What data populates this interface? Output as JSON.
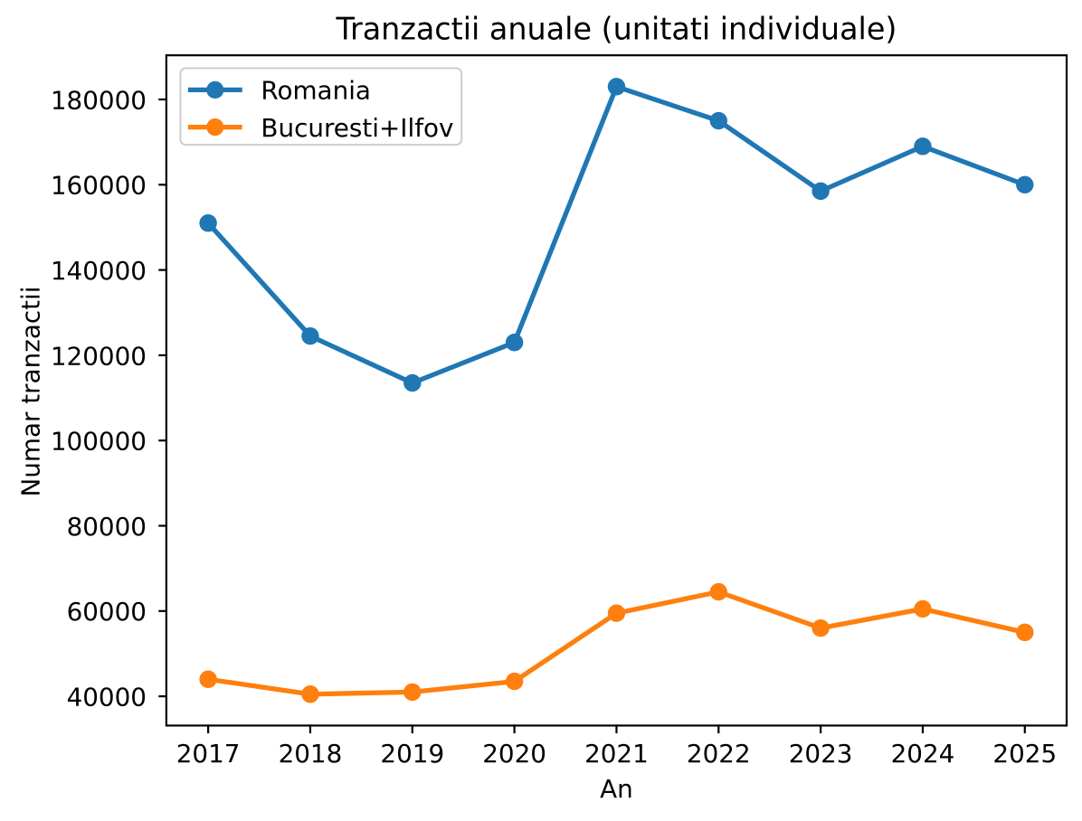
{
  "chart_data": {
    "type": "line",
    "title": "Tranzactii anuale (unitati individuale)",
    "xlabel": "An",
    "ylabel": "Numar tranzactii",
    "x": [
      2017,
      2018,
      2019,
      2020,
      2021,
      2022,
      2023,
      2024,
      2025
    ],
    "series": [
      {
        "name": "Romania",
        "color": "#1f77b4",
        "values": [
          151000,
          124500,
          113500,
          123000,
          183000,
          175000,
          158500,
          169000,
          160000
        ]
      },
      {
        "name": "Bucuresti+Ilfov",
        "color": "#ff7f0e",
        "values": [
          44000,
          40500,
          41000,
          43500,
          59500,
          64500,
          56000,
          60500,
          55000
        ]
      }
    ],
    "marker": "o",
    "grid": false,
    "legend_position": "upper left",
    "xlim": [
      2016.6,
      2025.4
    ],
    "ylim": [
      33375,
      190125
    ],
    "xticks": [
      2017,
      2018,
      2019,
      2020,
      2021,
      2022,
      2023,
      2024,
      2025
    ],
    "yticks": [
      40000,
      60000,
      80000,
      100000,
      120000,
      140000,
      160000,
      180000
    ],
    "axis_color": "#000000",
    "background_color": "#ffffff",
    "legend_border_color": "#cccccc",
    "legend_background_color": "#ffffff"
  }
}
